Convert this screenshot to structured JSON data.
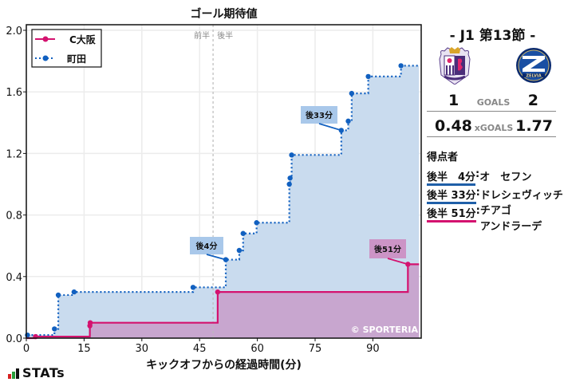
{
  "chart_data": {
    "type": "line",
    "subtype": "step-area",
    "title": "ゴール期待値",
    "xlabel": "キックオフからの経過時間(分)",
    "ylabel": "",
    "xlim": [
      0,
      102
    ],
    "ylim": [
      0,
      2.0
    ],
    "xticks": [
      0,
      15,
      30,
      45,
      60,
      75,
      90
    ],
    "yticks": [
      "0.0",
      "0.4",
      "0.8",
      "1.2",
      "1.6",
      "2.0"
    ],
    "grid": true,
    "legend_position": "upper left",
    "halftime_marker": {
      "x": 48.5,
      "left_label": "前半",
      "right_label": "後半"
    },
    "series": [
      {
        "name": "C大阪",
        "color": "#d4126f",
        "fill": "#c8a6cf",
        "style": "solid",
        "points": [
          [
            0,
            0.0
          ],
          [
            2.4,
            0.01
          ],
          [
            16.5,
            0.08
          ],
          [
            16.6,
            0.1
          ],
          [
            49.7,
            0.3
          ],
          [
            99.1,
            0.48
          ]
        ],
        "end_x": 102,
        "final": 0.48
      },
      {
        "name": "町田",
        "color": "#1160c0",
        "fill": "#c9dbee",
        "style": "dotted",
        "points": [
          [
            0.3,
            0.02
          ],
          [
            7.3,
            0.06
          ],
          [
            8.3,
            0.28
          ],
          [
            12.4,
            0.3
          ],
          [
            43.3,
            0.33
          ],
          [
            51.8,
            0.51
          ],
          [
            55.3,
            0.57
          ],
          [
            56.3,
            0.68
          ],
          [
            59.8,
            0.75
          ],
          [
            68.3,
            1.0
          ],
          [
            68.5,
            1.04
          ],
          [
            68.9,
            1.19
          ],
          [
            81.8,
            1.35
          ],
          [
            83.6,
            1.41
          ],
          [
            84.5,
            1.59
          ],
          [
            88.8,
            1.7
          ],
          [
            97.3,
            1.77
          ]
        ],
        "end_x": 102,
        "final": 1.77
      }
    ],
    "annotations": [
      {
        "text": "後4分",
        "team": "町田",
        "x": 51.8,
        "y": 0.51
      },
      {
        "text": "後33分",
        "team": "町田",
        "x": 81.8,
        "y": 1.35
      },
      {
        "text": "後51分",
        "team": "C大阪",
        "x": 99.1,
        "y": 0.48
      }
    ],
    "watermark": "© SPORTERIA"
  },
  "match": {
    "round": "- J1 第13節 -",
    "home": {
      "name": "C大阪",
      "goals": "1",
      "xg": "0.48",
      "color": "#d4126f"
    },
    "away": {
      "name": "町田",
      "goals": "2",
      "xg": "1.77",
      "color": "#1160c0"
    },
    "goals_label": "GOALS",
    "xgoals_label": "xGOALS"
  },
  "scorers": {
    "title": "得点者",
    "items": [
      {
        "time": "後半　4分",
        "name": "オ　セフン",
        "color": "#1f5fa8"
      },
      {
        "time": "後半 33分",
        "name": "ドレシェヴィッチ",
        "color": "#1f5fa8"
      },
      {
        "time": "後半 51分",
        "name": "チアゴ\nアンドラーデ",
        "color": "#d4126f"
      }
    ]
  },
  "branding": {
    "stats_label": "STATs"
  }
}
